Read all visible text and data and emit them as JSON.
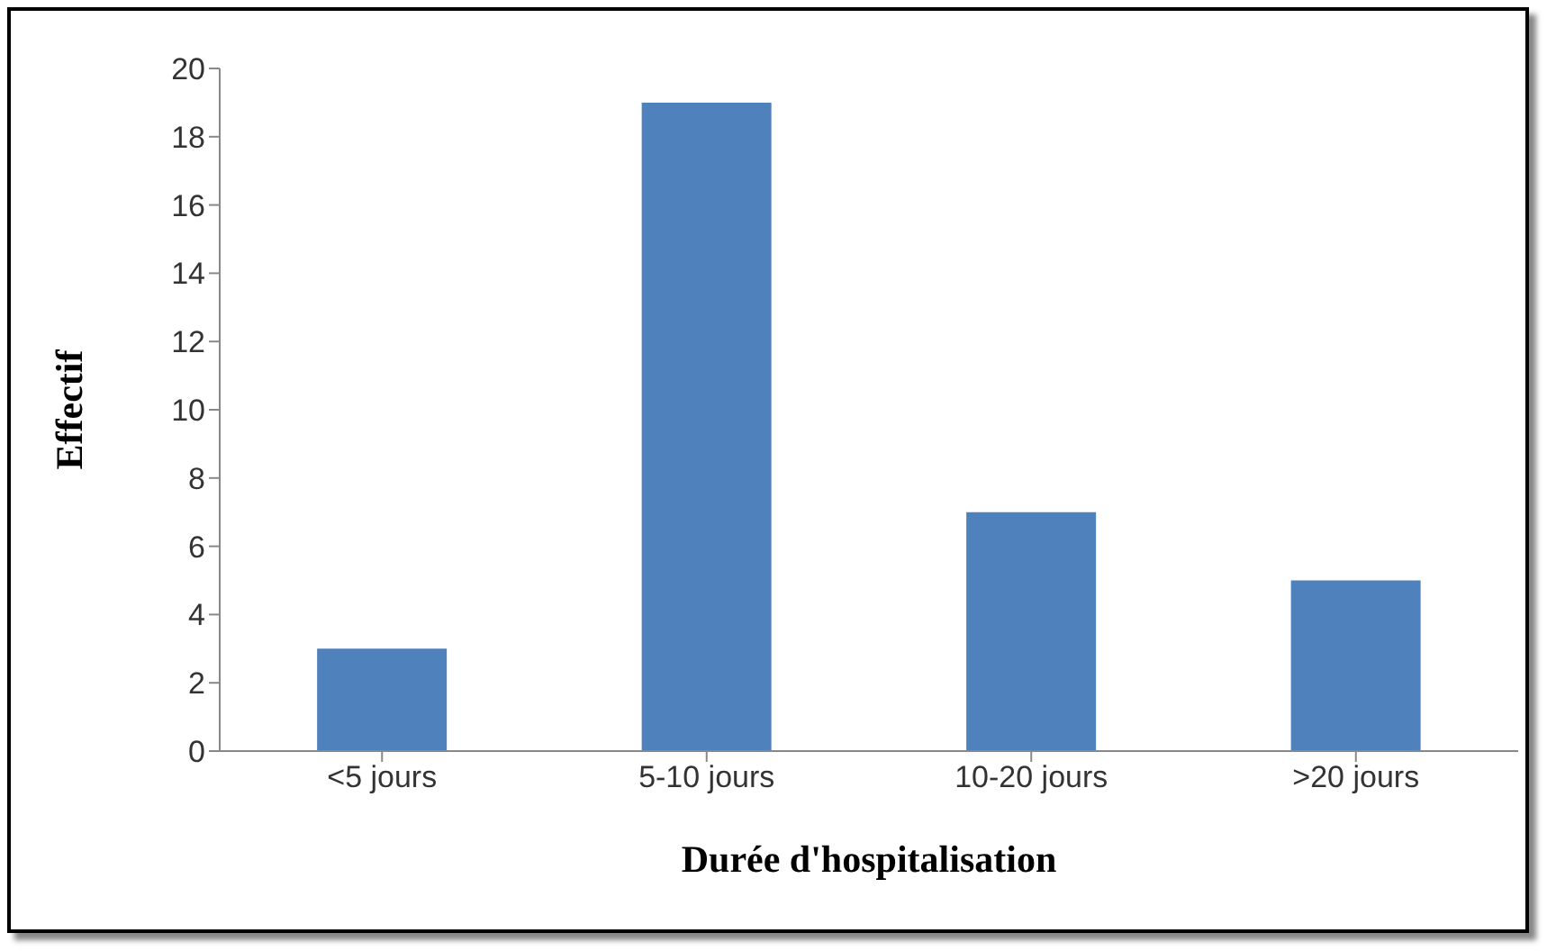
{
  "chart_data": {
    "type": "bar",
    "xlabel": "Durée d'hospitalisation",
    "ylabel": "Effectif",
    "categories": [
      "<5 jours",
      "5-10 jours",
      "10-20 jours",
      ">20 jours"
    ],
    "values": [
      3,
      19,
      7,
      5
    ],
    "color": "#4f81bd",
    "ylim": [
      0,
      20
    ],
    "yticks": [
      0,
      2,
      4,
      6,
      8,
      10,
      12,
      14,
      16,
      18,
      20
    ],
    "grid": false,
    "legend": false
  }
}
